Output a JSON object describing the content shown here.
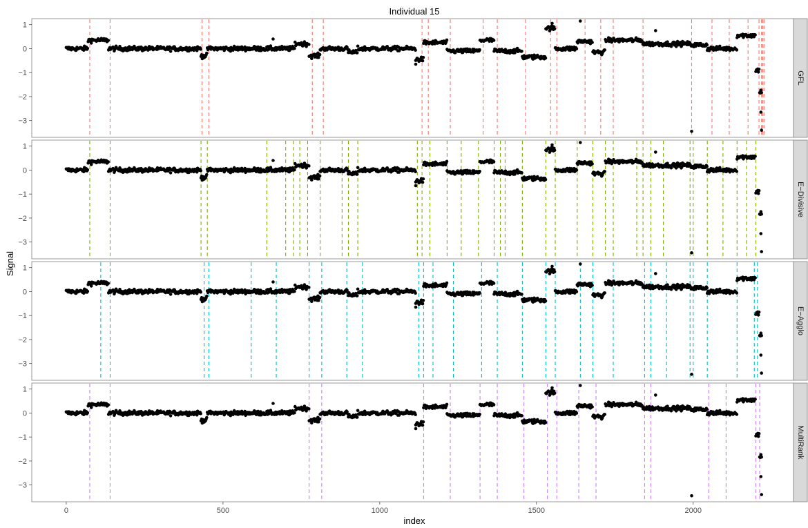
{
  "chart_data": {
    "type": "scatter",
    "title": "Individual 15",
    "xlabel": "index",
    "ylabel": "Signal",
    "xlim": [
      -110,
      2320
    ],
    "ylim": [
      -3.7,
      1.25
    ],
    "x_ticks": [
      0,
      500,
      1000,
      1500,
      2000
    ],
    "y_ticks": [
      -3,
      -2,
      -1,
      0,
      1
    ],
    "grid": false,
    "signal_segments": [
      {
        "start": 0,
        "end": 70,
        "level": 0.0
      },
      {
        "start": 70,
        "end": 135,
        "level": 0.35
      },
      {
        "start": 135,
        "end": 430,
        "level": 0.0
      },
      {
        "start": 430,
        "end": 450,
        "level": -0.3
      },
      {
        "start": 450,
        "end": 730,
        "level": 0.0
      },
      {
        "start": 730,
        "end": 775,
        "level": 0.2
      },
      {
        "start": 775,
        "end": 810,
        "level": -0.3
      },
      {
        "start": 810,
        "end": 900,
        "level": 0.0
      },
      {
        "start": 900,
        "end": 930,
        "level": -0.15
      },
      {
        "start": 930,
        "end": 1115,
        "level": 0.0
      },
      {
        "start": 1115,
        "end": 1140,
        "level": -0.45
      },
      {
        "start": 1140,
        "end": 1215,
        "level": 0.25
      },
      {
        "start": 1215,
        "end": 1320,
        "level": -0.1
      },
      {
        "start": 1320,
        "end": 1365,
        "level": 0.35
      },
      {
        "start": 1365,
        "end": 1455,
        "level": -0.1
      },
      {
        "start": 1455,
        "end": 1530,
        "level": -0.35
      },
      {
        "start": 1530,
        "end": 1560,
        "level": 0.85
      },
      {
        "start": 1560,
        "end": 1630,
        "level": 0.0
      },
      {
        "start": 1630,
        "end": 1680,
        "level": 0.3
      },
      {
        "start": 1680,
        "end": 1720,
        "level": -0.15
      },
      {
        "start": 1720,
        "end": 1840,
        "level": 0.35
      },
      {
        "start": 1840,
        "end": 1990,
        "level": 0.2
      },
      {
        "start": 1990,
        "end": 2045,
        "level": 0.15
      },
      {
        "start": 2045,
        "end": 2140,
        "level": 0.0
      },
      {
        "start": 2140,
        "end": 2200,
        "level": 0.55
      },
      {
        "start": 2200,
        "end": 2212,
        "level": -0.9
      },
      {
        "start": 2212,
        "end": 2220,
        "level": -1.8
      }
    ],
    "signal_outliers": [
      {
        "x": 1995,
        "y": -3.45
      },
      {
        "x": 2218,
        "y": -3.4
      },
      {
        "x": 2216,
        "y": -2.65
      },
      {
        "x": 1640,
        "y": 1.15
      },
      {
        "x": 1550,
        "y": 1.05
      },
      {
        "x": 1115,
        "y": -0.65
      },
      {
        "x": 1880,
        "y": 0.75
      },
      {
        "x": 660,
        "y": 0.4
      }
    ],
    "panels": [
      {
        "label": "GFL",
        "color": "#f8766d",
        "changepoints": [
          75,
          140,
          433,
          455,
          785,
          820,
          1135,
          1155,
          1225,
          1330,
          1375,
          1465,
          1545,
          1565,
          1655,
          1705,
          1745,
          1840,
          1995,
          2060,
          2115,
          2175,
          2210,
          2218,
          2222,
          2226
        ]
      },
      {
        "label": "E−Divisive",
        "color": "#7cae00",
        "changepoints": [
          75,
          140,
          430,
          450,
          640,
          700,
          725,
          745,
          770,
          810,
          880,
          900,
          930,
          1120,
          1135,
          1160,
          1215,
          1260,
          1315,
          1365,
          1385,
          1400,
          1455,
          1530,
          1560,
          1630,
          1680,
          1720,
          1745,
          1820,
          1840,
          1865,
          1905,
          1990,
          2000,
          2045,
          2095,
          2140,
          2170,
          2200
        ]
      },
      {
        "label": "E−Agglo",
        "color": "#00bfc4",
        "changepoints": [
          110,
          140,
          440,
          455,
          590,
          670,
          775,
          815,
          895,
          945,
          1125,
          1140,
          1170,
          1235,
          1325,
          1375,
          1455,
          1530,
          1560,
          1640,
          1680,
          1745,
          1845,
          1865,
          1915,
          1990,
          2000,
          2045,
          2140,
          2195,
          2205
        ]
      },
      {
        "label": "MultiRank",
        "color": "#c77cff",
        "changepoints": [
          75,
          140,
          775,
          815,
          1140,
          1225,
          1320,
          1375,
          1460,
          1535,
          1565,
          1635,
          1690,
          1845,
          1865,
          2050,
          2105,
          2200,
          2212
        ]
      }
    ]
  }
}
